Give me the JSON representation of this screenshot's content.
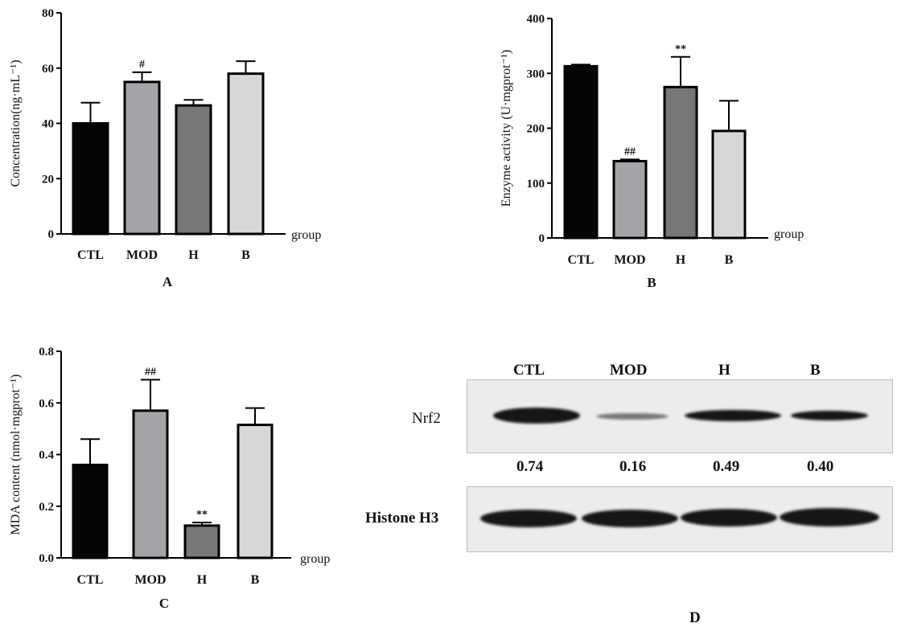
{
  "chart_data": [
    {
      "panel": "A",
      "type": "bar",
      "categories": [
        "CTL",
        "MOD",
        "H",
        "B"
      ],
      "values": [
        40,
        55,
        46.5,
        58
      ],
      "errors": [
        7.5,
        3.5,
        2,
        4.5
      ],
      "annotations": [
        "",
        "#",
        "",
        ""
      ],
      "colors": [
        "#050505",
        "#a3a3a8",
        "#777777",
        "#d7d7d7"
      ],
      "ylabel": "Concentration(ng·mL⁻¹)",
      "xlabel": "group",
      "ylim": [
        0,
        80
      ],
      "yticks": [
        0,
        20,
        40,
        60,
        80
      ]
    },
    {
      "panel": "B",
      "type": "bar",
      "categories": [
        "CTL",
        "MOD",
        "H",
        "B"
      ],
      "values": [
        313,
        140,
        275,
        195
      ],
      "errors": [
        3,
        3,
        55,
        55
      ],
      "annotations": [
        "",
        "##",
        "**",
        ""
      ],
      "colors": [
        "#050505",
        "#a3a3a8",
        "#777777",
        "#d7d7d7"
      ],
      "ylabel": "Enzyme activity (U·mgprot⁻¹)",
      "xlabel": "group",
      "ylim": [
        0,
        400
      ],
      "yticks": [
        0,
        100,
        200,
        300,
        400
      ]
    },
    {
      "panel": "C",
      "type": "bar",
      "categories": [
        "CTL",
        "MOD",
        "H",
        "B"
      ],
      "values": [
        0.36,
        0.57,
        0.125,
        0.515
      ],
      "errors": [
        0.1,
        0.12,
        0.012,
        0.065
      ],
      "annotations": [
        "",
        "##",
        "**",
        ""
      ],
      "colors": [
        "#050505",
        "#a3a3a8",
        "#777777",
        "#d7d7d7"
      ],
      "ylabel": "MDA content (nmol·mgprot⁻¹)",
      "xlabel": "group",
      "ylim": [
        0,
        0.8
      ],
      "yticks": [
        "0.0",
        "0.2",
        "0.4",
        "0.6",
        "0.8"
      ]
    },
    {
      "panel": "D",
      "type": "table",
      "columns": [
        "CTL",
        "MOD",
        "H",
        "B"
      ],
      "rows": [
        {
          "label": "Nrf2",
          "values": [
            "0.74",
            "0.16",
            "0.49",
            "0.40"
          ]
        },
        {
          "label": "Histone H3"
        }
      ],
      "nrf2_band_intensity": [
        0.74,
        0.16,
        0.49,
        0.4
      ]
    }
  ],
  "panel_labels": {
    "a": "A",
    "b": "B",
    "c": "C",
    "d": "D"
  }
}
